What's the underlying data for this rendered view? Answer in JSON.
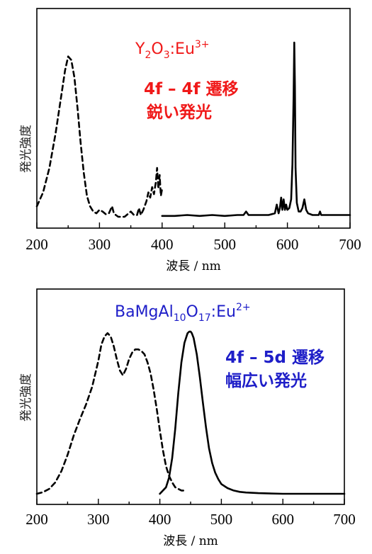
{
  "chart_data": [
    {
      "type": "line",
      "title": "Y2O3:Eu3+",
      "title_parts": {
        "base1": "Y",
        "sub1": "2",
        "base2": "O",
        "sub2": "3",
        "base3": ":Eu",
        "sup": "3+"
      },
      "annotation": [
        "4f – 4f 遷移",
        "鋭い発光"
      ],
      "xlabel": "波長 / nm",
      "ylabel": "発光強度",
      "xlim": [
        200,
        700
      ],
      "ylim": [
        0,
        1
      ],
      "x_ticks": [
        200,
        300,
        400,
        500,
        600,
        700
      ],
      "x_tick_labels": [
        "200",
        "300",
        "400",
        "500",
        "600",
        "700"
      ],
      "colors": {
        "annotation": "#f01919"
      },
      "series": [
        {
          "style": "dashed",
          "x": [
            200,
            210,
            220,
            230,
            240,
            245,
            250,
            255,
            260,
            265,
            270,
            275,
            280,
            285,
            290,
            295,
            300,
            305,
            310,
            315,
            320,
            323,
            326,
            330,
            335,
            340,
            345,
            350,
            355,
            360,
            363,
            366,
            370,
            375,
            378,
            381,
            384,
            387,
            390,
            392,
            394,
            396,
            398,
            400
          ],
          "y": [
            0.06,
            0.14,
            0.28,
            0.48,
            0.72,
            0.84,
            0.92,
            0.9,
            0.8,
            0.62,
            0.42,
            0.25,
            0.12,
            0.06,
            0.03,
            0.02,
            0.04,
            0.03,
            0.015,
            0.02,
            0.06,
            0.02,
            0.01,
            0.0,
            0.0,
            0.0,
            0.015,
            0.03,
            0.01,
            0.01,
            0.05,
            0.01,
            0.04,
            0.09,
            0.14,
            0.11,
            0.17,
            0.13,
            0.2,
            0.28,
            0.16,
            0.24,
            0.12,
            0.16
          ]
        },
        {
          "style": "solid",
          "x": [
            400,
            420,
            440,
            460,
            480,
            500,
            520,
            530,
            534,
            538,
            550,
            570,
            580,
            583,
            586,
            588,
            590,
            592,
            594,
            596,
            598,
            600,
            603,
            606,
            608,
            610,
            611,
            612,
            613,
            615,
            618,
            621,
            624,
            627,
            630,
            633,
            640,
            650,
            652,
            654,
            670,
            700
          ],
          "y": [
            0.005,
            0.005,
            0.01,
            0.005,
            0.01,
            0.005,
            0.01,
            0.01,
            0.03,
            0.01,
            0.01,
            0.01,
            0.02,
            0.07,
            0.02,
            0.05,
            0.11,
            0.04,
            0.1,
            0.04,
            0.07,
            0.04,
            0.05,
            0.1,
            0.3,
            0.7,
            1.0,
            0.75,
            0.28,
            0.08,
            0.03,
            0.03,
            0.05,
            0.1,
            0.04,
            0.02,
            0.01,
            0.01,
            0.03,
            0.01,
            0.01,
            0.01
          ]
        }
      ]
    },
    {
      "type": "line",
      "title": "BaMgAl10O17:Eu2+",
      "title_parts": {
        "base1": "BaMgAl",
        "sub1": "10",
        "base2": "O",
        "sub2": "17",
        "base3": ":Eu",
        "sup": "2+"
      },
      "annotation": [
        "4f – 5d 遷移",
        "幅広い発光"
      ],
      "xlabel": "波長 / nm",
      "ylabel": "発光強度",
      "xlim": [
        200,
        700
      ],
      "ylim": [
        0,
        1
      ],
      "x_ticks": [
        200,
        300,
        400,
        500,
        600,
        700
      ],
      "x_tick_labels": [
        "200",
        "300",
        "400",
        "500",
        "600",
        "700"
      ],
      "colors": {
        "annotation": "#1e1ec8"
      },
      "series": [
        {
          "style": "dashed",
          "x": [
            200,
            210,
            220,
            230,
            240,
            250,
            260,
            270,
            280,
            290,
            300,
            305,
            310,
            315,
            320,
            325,
            330,
            335,
            340,
            345,
            350,
            355,
            360,
            365,
            370,
            375,
            380,
            385,
            390,
            395,
            400,
            405,
            410,
            415,
            420,
            425,
            430,
            435,
            440
          ],
          "y": [
            0.0,
            0.01,
            0.03,
            0.07,
            0.14,
            0.24,
            0.36,
            0.46,
            0.55,
            0.66,
            0.82,
            0.92,
            0.97,
            0.99,
            0.97,
            0.91,
            0.83,
            0.76,
            0.73,
            0.77,
            0.83,
            0.87,
            0.89,
            0.89,
            0.88,
            0.86,
            0.81,
            0.74,
            0.64,
            0.52,
            0.39,
            0.27,
            0.17,
            0.11,
            0.07,
            0.04,
            0.03,
            0.02,
            0.02
          ]
        },
        {
          "style": "solid",
          "x": [
            400,
            410,
            415,
            420,
            425,
            430,
            435,
            440,
            445,
            448,
            450,
            452,
            455,
            460,
            465,
            470,
            475,
            480,
            485,
            490,
            495,
            500,
            510,
            520,
            530,
            540,
            560,
            600,
            650,
            700
          ],
          "y": [
            0.0,
            0.04,
            0.1,
            0.22,
            0.4,
            0.62,
            0.81,
            0.93,
            0.99,
            1.0,
            1.0,
            0.99,
            0.96,
            0.86,
            0.72,
            0.56,
            0.41,
            0.28,
            0.19,
            0.13,
            0.09,
            0.06,
            0.035,
            0.02,
            0.012,
            0.008,
            0.004,
            0.0,
            0.0,
            0.0
          ]
        }
      ]
    }
  ]
}
